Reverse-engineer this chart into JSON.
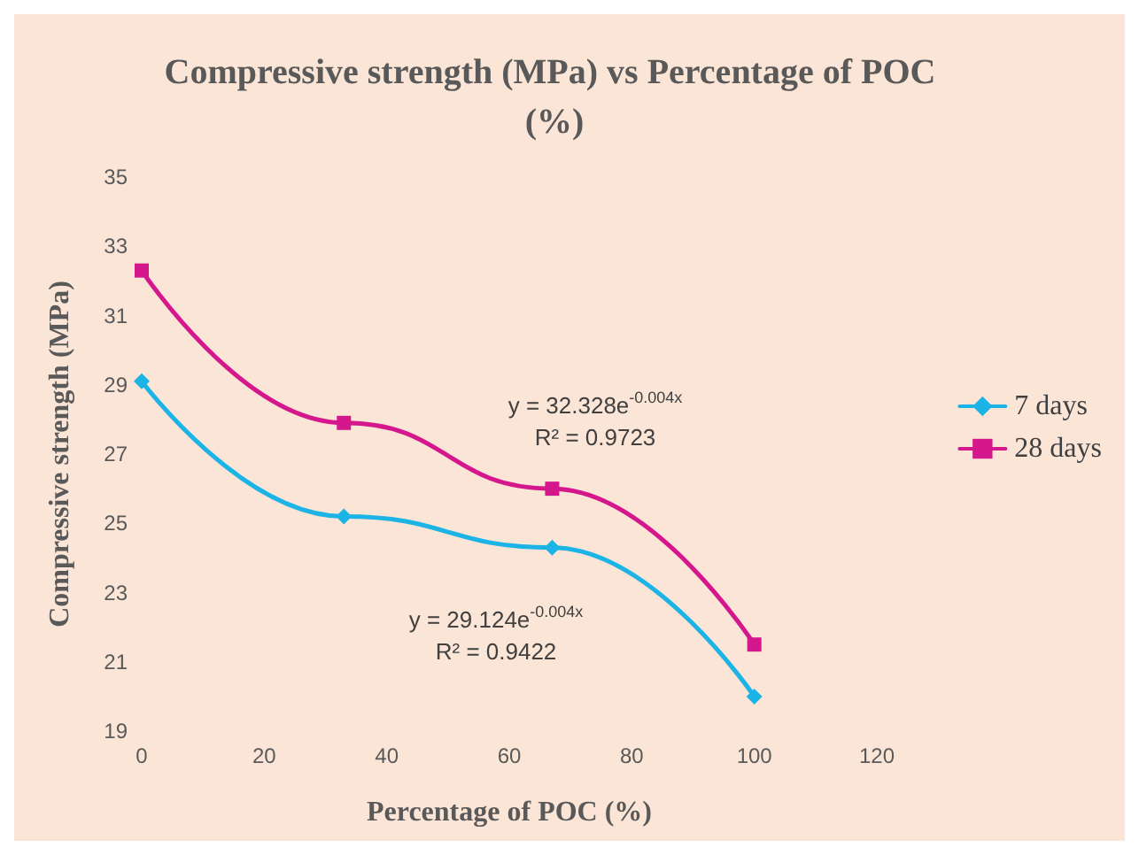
{
  "chart_data": {
    "type": "line",
    "title": "Compressive strength (MPa) vs Percentage of POC (%)",
    "xlabel": "Percentage of POC (%)",
    "ylabel": "Compressive strength (MPa)",
    "x": [
      0,
      33,
      67,
      100
    ],
    "series": [
      {
        "name": "7 days",
        "color": "#1cb4e6",
        "marker": "diamond",
        "values": [
          29.1,
          25.2,
          24.3,
          20.0
        ]
      },
      {
        "name": "28 days",
        "color": "#d4178c",
        "marker": "square",
        "values": [
          32.3,
          27.9,
          26.0,
          21.5
        ]
      }
    ],
    "xlim": [
      0,
      120
    ],
    "xticks": [
      0,
      20,
      40,
      60,
      80,
      100,
      120
    ],
    "ylim": [
      19,
      35
    ],
    "yticks": [
      19,
      21,
      23,
      25,
      27,
      29,
      31,
      33,
      35
    ],
    "grid": false,
    "legend": "right",
    "line_style": "solid",
    "annotations": [
      "y = 32.328e$^{-0.004x}$\nR² = 0.9723",
      "y = 29.124e$^{-0.004x}$\nR² = 0.9422"
    ]
  }
}
